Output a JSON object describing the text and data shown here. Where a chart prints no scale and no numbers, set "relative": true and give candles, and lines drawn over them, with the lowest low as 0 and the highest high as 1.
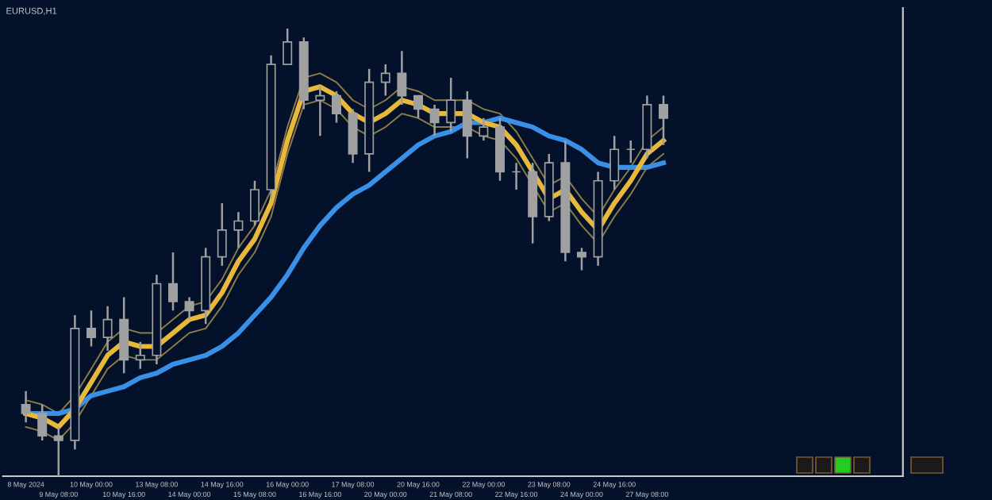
{
  "chart_data": {
    "type": "candlestick",
    "title": "EURUSD,H1",
    "relative": true,
    "color": "#a0a0a0",
    "categories": [
      "8 May 2024",
      null,
      "9 May 08:00",
      null,
      "10 May 00:00",
      null,
      "10 May 16:00",
      null,
      "13 May 08:00",
      null,
      "14 May 00:00",
      null,
      "14 May 16:00",
      null,
      "15 May 08:00",
      null,
      "16 May 00:00",
      null,
      "16 May 16:00",
      null,
      "17 May 08:00",
      null,
      "20 May 00:00",
      null,
      "20 May 16:00",
      null,
      "21 May 08:00",
      null,
      "22 May 00:00",
      null,
      "22 May 16:00",
      null,
      "23 May 08:00",
      null,
      "24 May 00:00",
      null,
      "24 May 16:00",
      null,
      "27 May 08:00",
      null
    ],
    "ohlc": [
      [
        0.16,
        0.19,
        0.12,
        0.14
      ],
      [
        0.14,
        0.16,
        0.08,
        0.09
      ],
      [
        0.09,
        0.11,
        0.0,
        0.08
      ],
      [
        0.08,
        0.36,
        0.06,
        0.33
      ],
      [
        0.33,
        0.37,
        0.29,
        0.31
      ],
      [
        0.31,
        0.38,
        0.28,
        0.35
      ],
      [
        0.35,
        0.4,
        0.23,
        0.26
      ],
      [
        0.26,
        0.3,
        0.24,
        0.27
      ],
      [
        0.27,
        0.45,
        0.25,
        0.43
      ],
      [
        0.43,
        0.5,
        0.37,
        0.39
      ],
      [
        0.39,
        0.4,
        0.35,
        0.37
      ],
      [
        0.37,
        0.51,
        0.34,
        0.49
      ],
      [
        0.49,
        0.61,
        0.47,
        0.55
      ],
      [
        0.55,
        0.59,
        0.51,
        0.57
      ],
      [
        0.57,
        0.66,
        0.56,
        0.64
      ],
      [
        0.64,
        0.94,
        0.62,
        0.92
      ],
      [
        0.92,
        1.0,
        0.92,
        0.97
      ],
      [
        0.97,
        0.98,
        0.82,
        0.84
      ],
      [
        0.84,
        0.87,
        0.76,
        0.85
      ],
      [
        0.85,
        0.86,
        0.79,
        0.81
      ],
      [
        0.81,
        0.82,
        0.7,
        0.72
      ],
      [
        0.72,
        0.91,
        0.68,
        0.88
      ],
      [
        0.88,
        0.92,
        0.85,
        0.9
      ],
      [
        0.9,
        0.95,
        0.83,
        0.85
      ],
      [
        0.85,
        0.85,
        0.8,
        0.82
      ],
      [
        0.82,
        0.83,
        0.76,
        0.79
      ],
      [
        0.79,
        0.89,
        0.77,
        0.84
      ],
      [
        0.84,
        0.86,
        0.71,
        0.76
      ],
      [
        0.76,
        0.8,
        0.75,
        0.78
      ],
      [
        0.78,
        0.8,
        0.66,
        0.68
      ],
      [
        0.68,
        0.7,
        0.64,
        0.68
      ],
      [
        0.68,
        0.7,
        0.52,
        0.58
      ],
      [
        0.58,
        0.72,
        0.57,
        0.7
      ],
      [
        0.7,
        0.75,
        0.48,
        0.5
      ],
      [
        0.5,
        0.51,
        0.46,
        0.49
      ],
      [
        0.49,
        0.68,
        0.47,
        0.66
      ],
      [
        0.66,
        0.76,
        0.64,
        0.73
      ],
      [
        0.73,
        0.75,
        0.7,
        0.73
      ],
      [
        0.73,
        0.85,
        0.71,
        0.83
      ],
      [
        0.83,
        0.85,
        0.74,
        0.8
      ]
    ],
    "series": [
      {
        "type": "line",
        "color": "#3a8fe6",
        "values": [
          0.14,
          0.14,
          0.14,
          0.15,
          0.18,
          0.19,
          0.2,
          0.22,
          0.23,
          0.25,
          0.26,
          0.27,
          0.29,
          0.32,
          0.36,
          0.4,
          0.45,
          0.51,
          0.56,
          0.6,
          0.63,
          0.65,
          0.68,
          0.71,
          0.74,
          0.76,
          0.77,
          0.79,
          0.79,
          0.8,
          0.79,
          0.78,
          0.76,
          0.75,
          0.73,
          0.7,
          0.69,
          0.69,
          0.69,
          0.7
        ]
      },
      {
        "type": "line",
        "color": "#e8b83a",
        "values": [
          0.14,
          0.13,
          0.11,
          0.15,
          0.21,
          0.27,
          0.3,
          0.29,
          0.29,
          0.32,
          0.35,
          0.36,
          0.41,
          0.48,
          0.53,
          0.61,
          0.75,
          0.86,
          0.87,
          0.85,
          0.81,
          0.79,
          0.81,
          0.84,
          0.83,
          0.81,
          0.81,
          0.81,
          0.79,
          0.78,
          0.74,
          0.68,
          0.62,
          0.64,
          0.59,
          0.55,
          0.61,
          0.66,
          0.72,
          0.75
        ]
      },
      {
        "type": "line",
        "color": "#8c7a48",
        "values": [
          0.17,
          0.16,
          0.14,
          0.18,
          0.24,
          0.3,
          0.33,
          0.32,
          0.32,
          0.35,
          0.38,
          0.39,
          0.44,
          0.51,
          0.56,
          0.64,
          0.78,
          0.89,
          0.9,
          0.88,
          0.84,
          0.82,
          0.84,
          0.87,
          0.86,
          0.84,
          0.84,
          0.84,
          0.82,
          0.81,
          0.77,
          0.71,
          0.65,
          0.67,
          0.62,
          0.58,
          0.64,
          0.69,
          0.75,
          0.78
        ]
      },
      {
        "type": "line",
        "color": "#8c7a48",
        "values": [
          0.11,
          0.1,
          0.08,
          0.12,
          0.18,
          0.24,
          0.27,
          0.26,
          0.26,
          0.29,
          0.32,
          0.33,
          0.38,
          0.45,
          0.5,
          0.58,
          0.72,
          0.83,
          0.84,
          0.82,
          0.78,
          0.76,
          0.78,
          0.81,
          0.8,
          0.78,
          0.78,
          0.78,
          0.76,
          0.75,
          0.71,
          0.65,
          0.59,
          0.61,
          0.56,
          0.52,
          0.58,
          0.63,
          0.69,
          0.72
        ]
      }
    ],
    "tick_labels": "x"
  }
}
